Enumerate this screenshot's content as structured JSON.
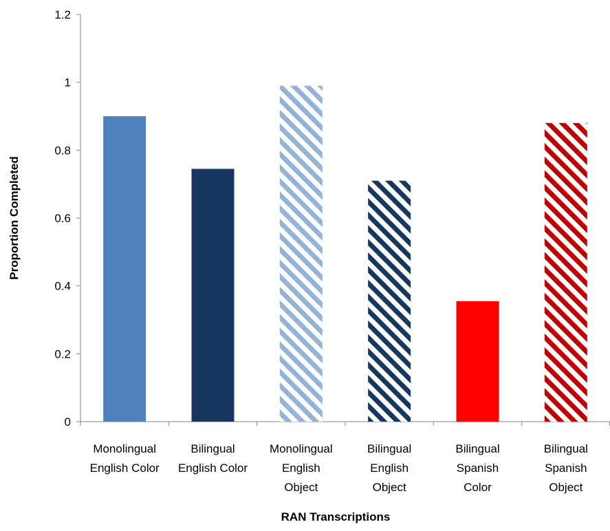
{
  "chart_data": {
    "type": "bar",
    "title": "",
    "xlabel": "RAN Transcriptions",
    "ylabel": "Proportion Completed",
    "ylim": [
      0,
      1.2
    ],
    "yticks": [
      "0",
      "0.2",
      "0.4",
      "0.6",
      "0.8",
      "1",
      "1.2"
    ],
    "grid": false,
    "legend": "none",
    "categories": [
      [
        "Monolingual",
        "English Color"
      ],
      [
        "Bilingual",
        "English Color"
      ],
      [
        "Monolingual",
        "English",
        "Object"
      ],
      [
        "Bilingual",
        "English",
        "Object"
      ],
      [
        "Bilingual",
        "Spanish",
        "Color"
      ],
      [
        "Bilingual",
        "Spanish",
        "Object"
      ]
    ],
    "values": [
      0.9,
      0.745,
      0.99,
      0.71,
      0.355,
      0.88
    ],
    "bar_styles": [
      {
        "color": "#4f81bd",
        "pattern": "solid"
      },
      {
        "color": "#17375e",
        "pattern": "solid"
      },
      {
        "color": "#95b3d7",
        "pattern": "diagonal-stripes"
      },
      {
        "color": "#17375e",
        "pattern": "diagonal-stripes"
      },
      {
        "color": "#ff0000",
        "pattern": "solid"
      },
      {
        "color": "#c00000",
        "pattern": "diagonal-stripes"
      }
    ]
  }
}
